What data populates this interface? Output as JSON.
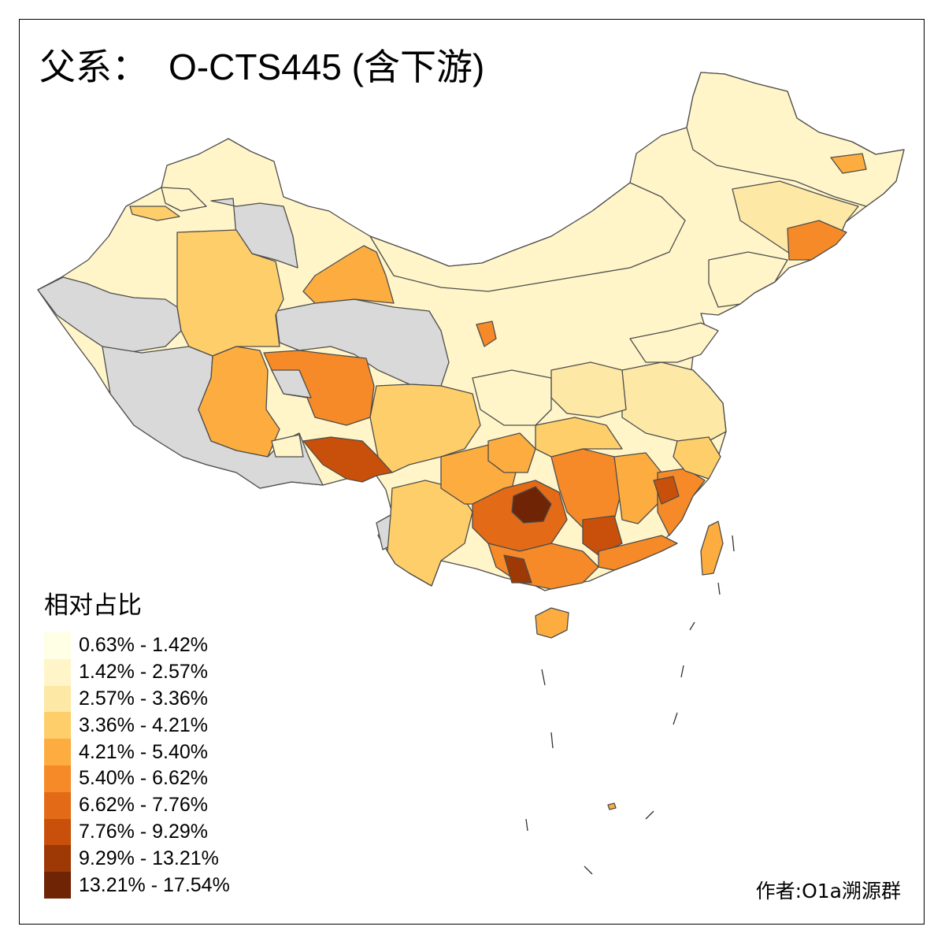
{
  "title": {
    "prefix": "父系：",
    "code": "O-CTS445 (含下游)"
  },
  "legend": {
    "title": "相对占比",
    "items": [
      {
        "label": "0.63% - 1.42%",
        "color": "#ffffe5"
      },
      {
        "label": "1.42% - 2.57%",
        "color": "#fff5c8"
      },
      {
        "label": "2.57% - 3.36%",
        "color": "#fee8a6"
      },
      {
        "label": "3.36% - 4.21%",
        "color": "#fece6a"
      },
      {
        "label": "4.21% - 5.40%",
        "color": "#fdad40"
      },
      {
        "label": "5.40% - 6.62%",
        "color": "#f68a28"
      },
      {
        "label": "6.62% - 7.76%",
        "color": "#e36a17"
      },
      {
        "label": "7.76% - 9.29%",
        "color": "#c9500b"
      },
      {
        "label": "9.29% - 13.21%",
        "color": "#9e3805"
      },
      {
        "label": "13.21% - 17.54%",
        "color": "#6e2405"
      }
    ]
  },
  "author": "作者:O1a溯源群",
  "map": {
    "no_data_color": "#d9d9d9",
    "border_color": "#555555"
  }
}
